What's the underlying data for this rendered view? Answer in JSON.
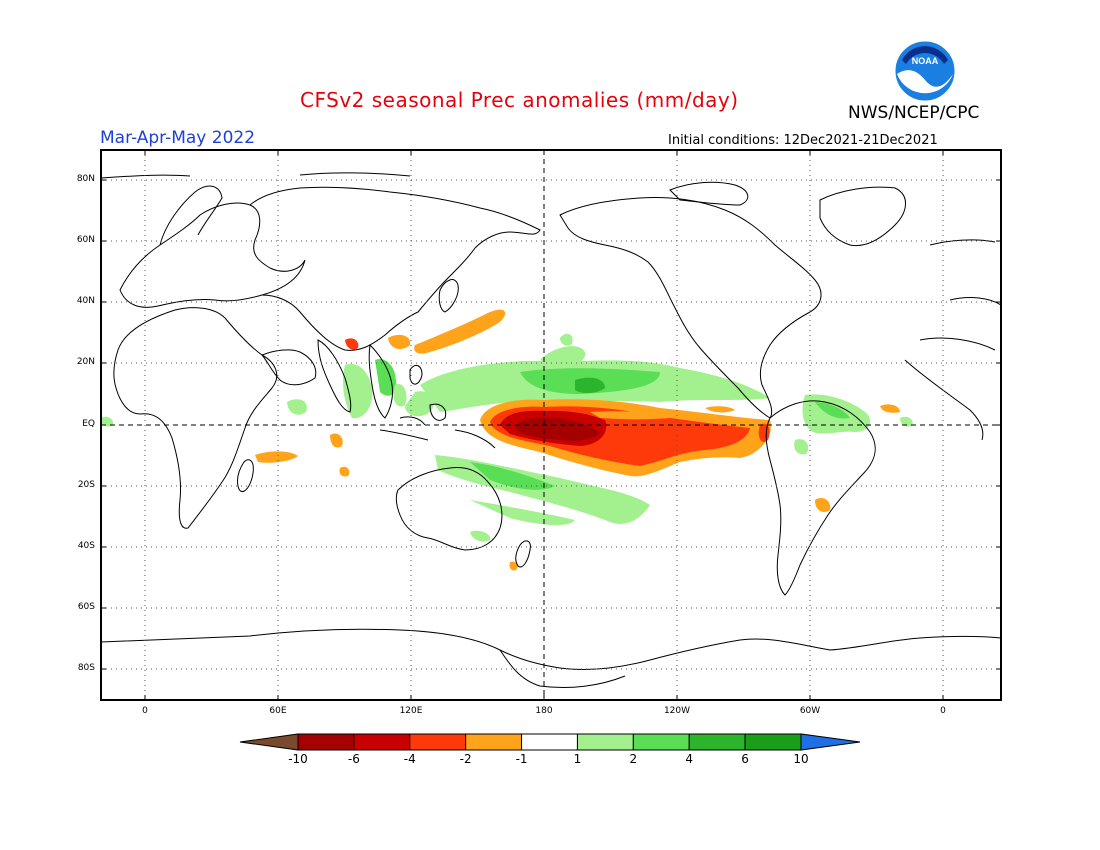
{
  "header": {
    "title": "CFSv2 seasonal Prec anomalies (mm/day)",
    "agency": "NWS/NCEP/CPC",
    "season": "Mar-Apr-May 2022",
    "initial_conditions": "Initial conditions: 12Dec2021-21Dec2021",
    "logo_text": "NOAA"
  },
  "map": {
    "lat_labels": [
      "80N",
      "60N",
      "40N",
      "20N",
      "EQ",
      "20S",
      "40S",
      "60S",
      "80S"
    ],
    "lon_labels": [
      "0",
      "60E",
      "120E",
      "180",
      "120W",
      "60W",
      "0"
    ]
  },
  "colorbar": {
    "labels": [
      "-10",
      "-6",
      "-4",
      "-2",
      "-1",
      "1",
      "2",
      "4",
      "6",
      "10"
    ],
    "colors": [
      "#7a4a2e",
      "#a50000",
      "#c80000",
      "#ff3a0a",
      "#ffa31a",
      "#ffffff",
      "#a3f08e",
      "#5ade55",
      "#2cb52c",
      "#1a9e1a",
      "#1f6fe6"
    ]
  }
}
